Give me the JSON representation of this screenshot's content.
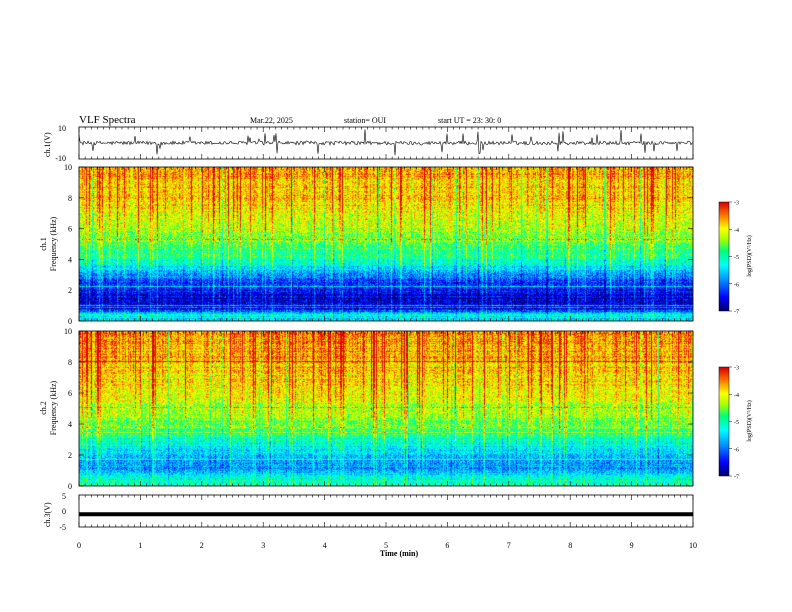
{
  "header": {
    "title": "VLF Spectra",
    "date": "Mar.22, 2025",
    "station": "station= OUI",
    "start": "start  UT  =   23: 30: 0"
  },
  "chart_data": [
    {
      "type": "line",
      "panel": "ch1-waveform",
      "ylabel": "ch.1(V)",
      "ylim": [
        -10,
        10
      ],
      "yticks": [
        "10",
        "-10"
      ],
      "xlim": [
        0,
        10
      ],
      "baseline": 0,
      "note_values": "noisy trace centred near 0 V, amplitude ~1-2 V with spikes"
    },
    {
      "type": "heatmap",
      "panel": "ch1-spectrogram",
      "ylabel_line1": "ch.1",
      "ylabel_line2": "Frequency (kHz)",
      "ylim": [
        0,
        10
      ],
      "yticks": [
        "0",
        "2",
        "4",
        "6",
        "8",
        "10"
      ],
      "xlim": [
        0,
        10
      ],
      "colorbar": {
        "label": "log(PSD)(V²/Hz)",
        "ticks": [
          "-3",
          "-4",
          "-5",
          "-6",
          "-7"
        ],
        "range": [
          -7,
          -3
        ]
      },
      "profile": [
        {
          "f": 0.0,
          "v": -5.6
        },
        {
          "f": 0.4,
          "v": -5.2
        },
        {
          "f": 0.8,
          "v": -6.6
        },
        {
          "f": 1.4,
          "v": -6.7
        },
        {
          "f": 2.0,
          "v": -6.5
        },
        {
          "f": 2.6,
          "v": -6.2
        },
        {
          "f": 3.2,
          "v": -5.7
        },
        {
          "f": 4.0,
          "v": -5.0
        },
        {
          "f": 5.0,
          "v": -4.6
        },
        {
          "f": 6.0,
          "v": -4.3
        },
        {
          "f": 7.0,
          "v": -4.0
        },
        {
          "f": 8.0,
          "v": -3.8
        },
        {
          "f": 10.0,
          "v": -3.6
        }
      ]
    },
    {
      "type": "heatmap",
      "panel": "ch2-spectrogram",
      "ylabel_line1": "ch.2",
      "ylabel_line2": "Frequency (kHz)",
      "ylim": [
        0,
        10
      ],
      "yticks": [
        "0",
        "2",
        "4",
        "6",
        "8",
        "10"
      ],
      "xlim": [
        0,
        10
      ],
      "colorbar": {
        "label": "log(PSD)(V²/Hz)",
        "ticks": [
          "-3",
          "-4",
          "-5",
          "-6",
          "-7"
        ],
        "range": [
          -7,
          -3
        ]
      },
      "profile": [
        {
          "f": 0.0,
          "v": -4.8
        },
        {
          "f": 0.6,
          "v": -5.4
        },
        {
          "f": 1.2,
          "v": -5.9
        },
        {
          "f": 2.0,
          "v": -5.6
        },
        {
          "f": 2.8,
          "v": -5.2
        },
        {
          "f": 3.6,
          "v": -4.8
        },
        {
          "f": 4.6,
          "v": -4.4
        },
        {
          "f": 6.0,
          "v": -4.0
        },
        {
          "f": 8.0,
          "v": -3.7
        },
        {
          "f": 10.0,
          "v": -3.5
        }
      ]
    },
    {
      "type": "line",
      "panel": "ch3-waveform",
      "ylabel": "ch.3(V)",
      "ylim": [
        -5,
        5
      ],
      "yticks": [
        "5",
        "0",
        "-5"
      ],
      "xlim": [
        0,
        10
      ],
      "level": -1.0
    }
  ],
  "xaxis": {
    "label": "Time (min)",
    "ticks": [
      "0",
      "1",
      "2",
      "3",
      "4",
      "5",
      "6",
      "7",
      "8",
      "9",
      "10"
    ]
  }
}
